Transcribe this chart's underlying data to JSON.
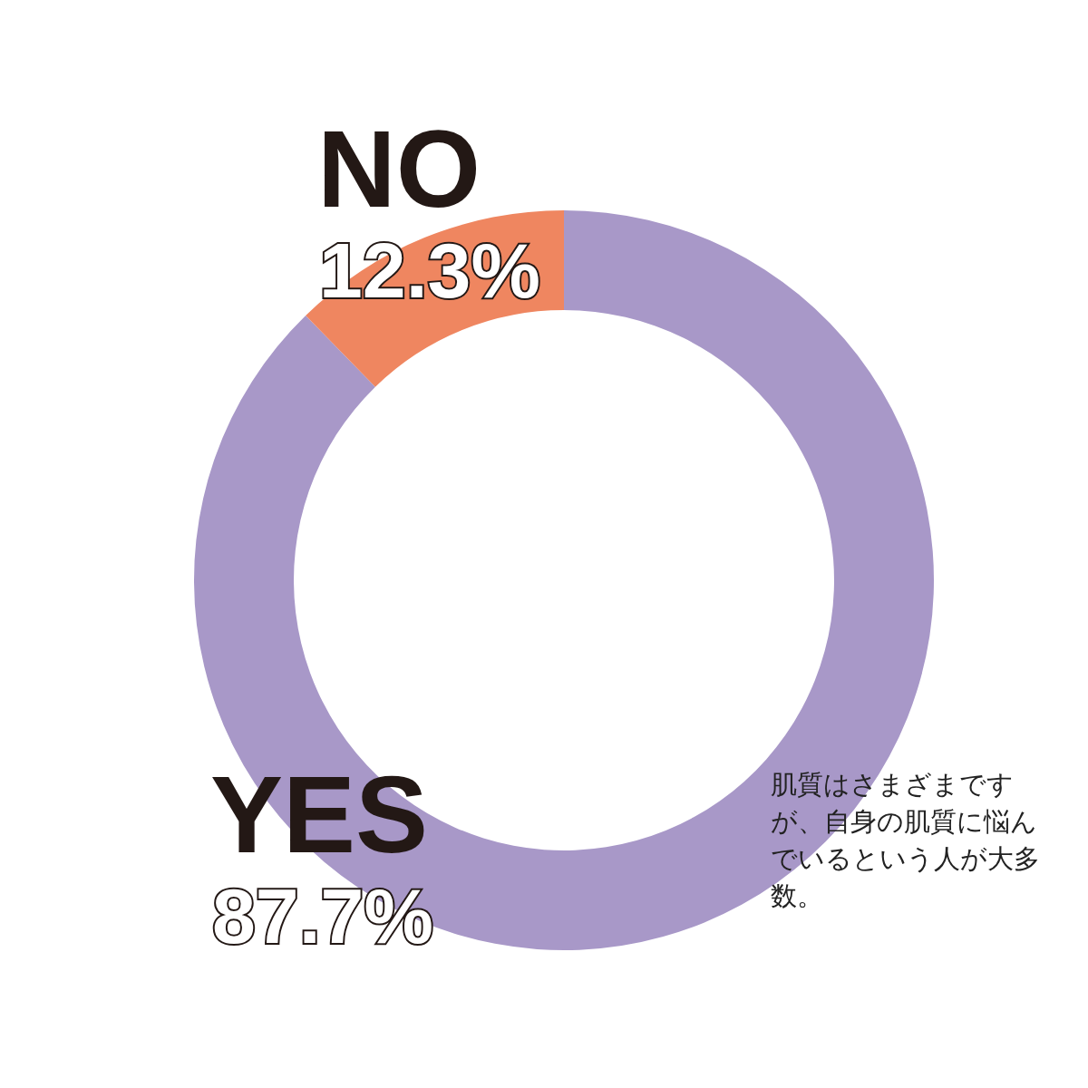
{
  "chart_data": {
    "type": "donut",
    "categories": [
      "YES",
      "NO"
    ],
    "values": [
      87.7,
      12.3
    ],
    "colors": [
      "#a898c8",
      "#ef8660"
    ],
    "value_labels": [
      "87.7%",
      "12.3%"
    ],
    "annotations": [
      "肌質はさまざまですが、自身の肌質に悩んでいるという人が大多数。"
    ]
  }
}
